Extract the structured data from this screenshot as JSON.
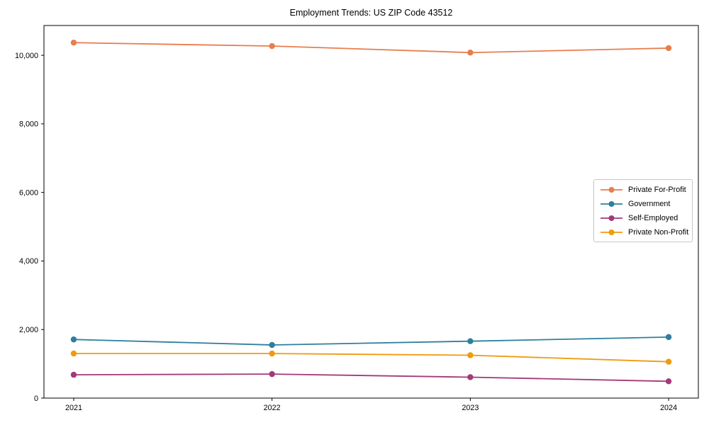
{
  "chart_data": {
    "type": "line",
    "title": "Employment Trends: US ZIP Code 43512",
    "x": [
      2021,
      2022,
      2023,
      2024
    ],
    "x_tick_labels": [
      "2021",
      "2022",
      "2023",
      "2024"
    ],
    "series": [
      {
        "name": "Private For-Profit",
        "color": "#e87d4e",
        "values": [
          10370,
          10270,
          10080,
          10210
        ]
      },
      {
        "name": "Government",
        "color": "#2e7f9e",
        "values": [
          1710,
          1550,
          1660,
          1780
        ]
      },
      {
        "name": "Self-Employed",
        "color": "#a23a7a",
        "values": [
          680,
          700,
          610,
          490
        ]
      },
      {
        "name": "Private Non-Profit",
        "color": "#f09a0d",
        "values": [
          1300,
          1300,
          1250,
          1060
        ]
      }
    ],
    "xlabel": "",
    "ylabel": "",
    "xlim": [
      2020.85,
      2024.15
    ],
    "ylim": [
      0,
      10870
    ],
    "yticks": [
      0,
      2000,
      4000,
      6000,
      8000,
      10000
    ],
    "ytick_labels": [
      "0",
      "2,000",
      "4,000",
      "6,000",
      "8,000",
      "10,000"
    ],
    "grid": false,
    "legend_position": "center right",
    "marker": "circle",
    "axis_color": "#000000",
    "background_color": "#ffffff"
  }
}
